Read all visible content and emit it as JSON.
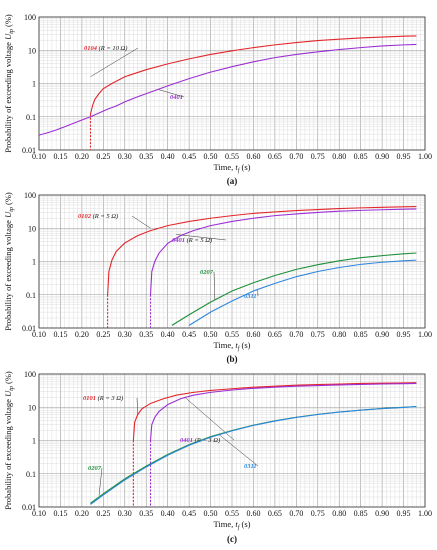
{
  "chart_data": [
    {
      "type": "line",
      "panel_label": "(a)",
      "xlabel": "Time, t_f (s)",
      "ylabel": "Probability of exceeding voltage U_tp (%)",
      "xlim": [
        0.1,
        1.0
      ],
      "ylim": [
        0.01,
        100
      ],
      "y_scale": "log",
      "grid": true,
      "x_ticks": [
        "0.10",
        "0.15",
        "0.20",
        "0.25",
        "0.30",
        "0.35",
        "0.40",
        "0.45",
        "0.50",
        "0.55",
        "0.60",
        "0.65",
        "0.70",
        "0.75",
        "0.80",
        "0.85",
        "0.90",
        "0.95",
        "1.00"
      ],
      "y_ticks": [
        "0.01",
        "0.1",
        "1",
        "10",
        "100"
      ],
      "series": [
        {
          "name": "0104 (R_hum = 10 Ω)",
          "color": "#e3262b",
          "onset": 0.22,
          "x": [
            0.22,
            0.225,
            0.23,
            0.24,
            0.25,
            0.27,
            0.3,
            0.35,
            0.4,
            0.45,
            0.5,
            0.55,
            0.6,
            0.65,
            0.7,
            0.75,
            0.8,
            0.85,
            0.9,
            0.95,
            0.98
          ],
          "y": [
            0.12,
            0.22,
            0.33,
            0.5,
            0.7,
            1.0,
            1.6,
            2.6,
            3.9,
            5.5,
            7.5,
            9.6,
            12,
            14.5,
            17,
            19.5,
            21.5,
            23.5,
            25,
            26.5,
            27
          ]
        },
        {
          "name": "0401",
          "color": "#9b2fd4",
          "x": [
            0.1,
            0.12,
            0.14,
            0.16,
            0.18,
            0.2,
            0.22,
            0.24,
            0.26,
            0.28,
            0.3,
            0.33,
            0.36,
            0.4,
            0.45,
            0.5,
            0.55,
            0.6,
            0.65,
            0.7,
            0.75,
            0.8,
            0.85,
            0.9,
            0.95,
            0.98
          ],
          "y": [
            0.028,
            0.033,
            0.04,
            0.05,
            0.063,
            0.08,
            0.1,
            0.13,
            0.17,
            0.21,
            0.28,
            0.4,
            0.55,
            0.85,
            1.4,
            2.2,
            3.2,
            4.5,
            6,
            7.5,
            9,
            10.5,
            12,
            13.5,
            14.5,
            15
          ]
        }
      ]
    },
    {
      "type": "line",
      "panel_label": "(b)",
      "xlabel": "Time, t_f (s)",
      "ylabel": "Probability of exceeding voltage U_tp (%)",
      "xlim": [
        0.1,
        1.0
      ],
      "ylim": [
        0.01,
        100
      ],
      "y_scale": "log",
      "grid": true,
      "x_ticks": [
        "0.10",
        "0.15",
        "0.20",
        "0.25",
        "0.30",
        "0.35",
        "0.40",
        "0.45",
        "0.50",
        "0.55",
        "0.60",
        "0.65",
        "0.70",
        "0.75",
        "0.80",
        "0.85",
        "0.90",
        "0.95",
        "1.00"
      ],
      "y_ticks": [
        "0.01",
        "0.1",
        "1",
        "10",
        "100"
      ],
      "series": [
        {
          "name": "0102 (R_hum = 5 Ω)",
          "color": "#e3262b",
          "onset": 0.26,
          "x": [
            0.26,
            0.263,
            0.27,
            0.28,
            0.3,
            0.33,
            0.36,
            0.4,
            0.45,
            0.5,
            0.55,
            0.6,
            0.65,
            0.7,
            0.75,
            0.8,
            0.85,
            0.9,
            0.95,
            0.98
          ],
          "y": [
            0.1,
            0.5,
            1.1,
            2,
            3.6,
            6,
            8.5,
            12,
            16,
            20,
            24,
            28,
            31,
            34,
            36.5,
            39,
            41,
            42.5,
            44,
            45
          ]
        },
        {
          "name": "0401 (R_hum = 5 Ω)",
          "color": "#9b2fd4",
          "onset": 0.36,
          "x": [
            0.36,
            0.363,
            0.37,
            0.38,
            0.4,
            0.43,
            0.46,
            0.5,
            0.55,
            0.6,
            0.65,
            0.7,
            0.75,
            0.8,
            0.85,
            0.9,
            0.95,
            0.98
          ],
          "y": [
            0.1,
            0.5,
            1.0,
            1.8,
            3.5,
            6,
            8.5,
            12,
            16,
            20,
            24,
            27,
            30,
            32.5,
            34.5,
            36,
            37.5,
            38
          ]
        },
        {
          "name": "0207",
          "color": "#1e8f3a",
          "x": [
            0.41,
            0.45,
            0.5,
            0.55,
            0.6,
            0.65,
            0.7,
            0.75,
            0.8,
            0.85,
            0.9,
            0.95,
            0.98
          ],
          "y": [
            0.012,
            0.025,
            0.06,
            0.13,
            0.23,
            0.38,
            0.58,
            0.8,
            1.05,
            1.3,
            1.5,
            1.7,
            1.8
          ]
        },
        {
          "name": "0311",
          "color": "#2e86de",
          "x": [
            0.45,
            0.5,
            0.55,
            0.6,
            0.65,
            0.7,
            0.75,
            0.8,
            0.85,
            0.9,
            0.95,
            0.98
          ],
          "y": [
            0.012,
            0.03,
            0.065,
            0.13,
            0.22,
            0.35,
            0.5,
            0.66,
            0.82,
            0.95,
            1.05,
            1.1
          ]
        }
      ]
    },
    {
      "type": "line",
      "panel_label": "(c)",
      "xlabel": "Time, t_f (s)",
      "ylabel": "Probability of exceeding voltage U_tp (%)",
      "xlim": [
        0.1,
        1.0
      ],
      "ylim": [
        0.01,
        100
      ],
      "y_scale": "log",
      "grid": true,
      "x_ticks": [
        "0.10",
        "0.15",
        "0.20",
        "0.25",
        "0.30",
        "0.35",
        "0.40",
        "0.45",
        "0.50",
        "0.55",
        "0.60",
        "0.65",
        "0.70",
        "0.75",
        "0.80",
        "0.85",
        "0.90",
        "0.95",
        "1.00"
      ],
      "y_ticks": [
        "0.01",
        "0.1",
        "1",
        "10",
        "100"
      ],
      "series": [
        {
          "name": "0101 (R_hum = 3 Ω)",
          "color": "#e3262b",
          "onset": 0.32,
          "x": [
            0.32,
            0.323,
            0.33,
            0.34,
            0.36,
            0.39,
            0.42,
            0.46,
            0.5,
            0.55,
            0.6,
            0.65,
            0.7,
            0.75,
            0.8,
            0.85,
            0.9,
            0.95,
            0.98
          ],
          "y": [
            1.0,
            3.5,
            6,
            9,
            13,
            18,
            23,
            28,
            32,
            36,
            40,
            43,
            46,
            48,
            50,
            52,
            53,
            54,
            55
          ]
        },
        {
          "name": "0401 (R_hum = 3 Ω)",
          "color": "#9b2fd4",
          "onset": 0.36,
          "x": [
            0.36,
            0.363,
            0.37,
            0.38,
            0.4,
            0.43,
            0.46,
            0.5,
            0.55,
            0.6,
            0.65,
            0.7,
            0.75,
            0.8,
            0.85,
            0.9,
            0.95,
            0.98
          ],
          "y": [
            1.0,
            3,
            5,
            7.5,
            12,
            18,
            23,
            28,
            33,
            37,
            40,
            43,
            45,
            47,
            48.5,
            50,
            51,
            52
          ]
        },
        {
          "name": "0207",
          "color": "#1e8f3a",
          "x": [
            0.22,
            0.25,
            0.3,
            0.35,
            0.4,
            0.45,
            0.5,
            0.55,
            0.6,
            0.65,
            0.7,
            0.75,
            0.8,
            0.85,
            0.9,
            0.95,
            0.98
          ],
          "y": [
            0.013,
            0.025,
            0.07,
            0.17,
            0.38,
            0.75,
            1.3,
            2.0,
            2.9,
            3.9,
            5.0,
            6.1,
            7.2,
            8.2,
            9.2,
            10,
            10.5
          ]
        },
        {
          "name": "0311",
          "color": "#2e86de",
          "x": [
            0.22,
            0.25,
            0.3,
            0.35,
            0.4,
            0.45,
            0.5,
            0.55,
            0.6,
            0.65,
            0.7,
            0.75,
            0.8,
            0.85,
            0.9,
            0.95,
            0.98
          ],
          "y": [
            0.012,
            0.023,
            0.065,
            0.16,
            0.36,
            0.72,
            1.25,
            1.95,
            2.85,
            3.85,
            4.95,
            6.05,
            7.15,
            8.15,
            9.1,
            9.9,
            10.4
          ]
        }
      ]
    }
  ]
}
